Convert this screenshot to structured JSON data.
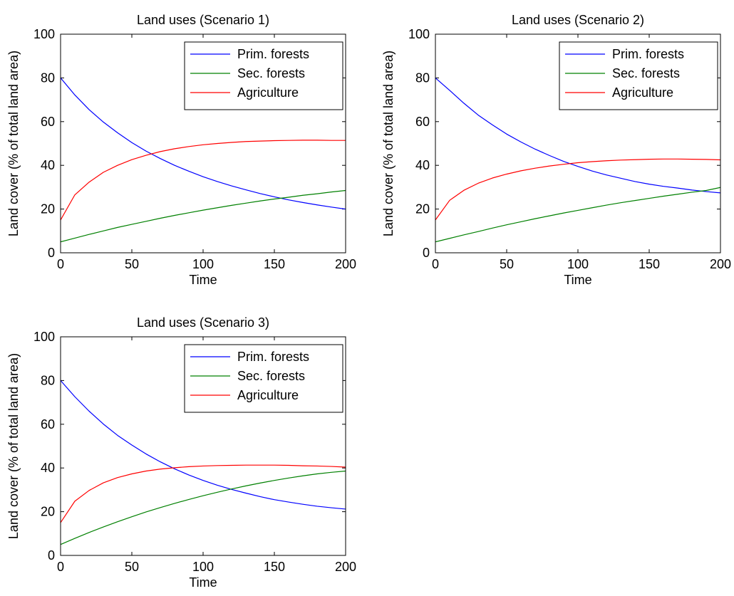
{
  "chart_data": [
    {
      "type": "line",
      "title": "Land uses (Scenario 1)",
      "xlabel": "Time",
      "ylabel": "Land cover (% of total land area)",
      "xlim": [
        0,
        200
      ],
      "ylim": [
        0,
        100
      ],
      "xticks": [
        0,
        50,
        100,
        150,
        200
      ],
      "yticks": [
        0,
        20,
        40,
        60,
        80,
        100
      ],
      "grid": false,
      "legend_position": "top-right",
      "x": [
        0,
        10,
        20,
        30,
        40,
        50,
        60,
        70,
        80,
        90,
        100,
        110,
        120,
        130,
        140,
        150,
        160,
        170,
        180,
        190,
        200
      ],
      "series": [
        {
          "name": "Prim. forests",
          "color": "#0000ff",
          "values": [
            80,
            72.2,
            65.5,
            59.8,
            54.9,
            50.4,
            46.5,
            43.1,
            40.0,
            37.3,
            34.8,
            32.6,
            30.6,
            28.8,
            27.1,
            25.6,
            24.2,
            23.0,
            21.9,
            20.9,
            20.0
          ]
        },
        {
          "name": "Sec. forests",
          "color": "#008000",
          "values": [
            5,
            6.7,
            8.4,
            10.0,
            11.6,
            13.0,
            14.4,
            15.8,
            17.1,
            18.3,
            19.5,
            20.6,
            21.7,
            22.7,
            23.7,
            24.6,
            25.4,
            26.3,
            27.0,
            27.8,
            28.5
          ]
        },
        {
          "name": "Agriculture",
          "color": "#ff0000",
          "values": [
            15,
            26.5,
            32.3,
            36.8,
            40.0,
            42.6,
            44.6,
            46.3,
            47.6,
            48.6,
            49.4,
            50.0,
            50.5,
            50.9,
            51.1,
            51.3,
            51.4,
            51.5,
            51.5,
            51.4,
            51.4
          ]
        }
      ]
    },
    {
      "type": "line",
      "title": "Land uses (Scenario 2)",
      "xlabel": "Time",
      "ylabel": "Land cover (% of total land area)",
      "xlim": [
        0,
        200
      ],
      "ylim": [
        0,
        100
      ],
      "xticks": [
        0,
        50,
        100,
        150,
        200
      ],
      "yticks": [
        0,
        20,
        40,
        60,
        80,
        100
      ],
      "grid": false,
      "legend_position": "top-right",
      "x": [
        0,
        10,
        20,
        30,
        40,
        50,
        60,
        70,
        80,
        90,
        100,
        110,
        120,
        130,
        140,
        150,
        160,
        170,
        180,
        190,
        200
      ],
      "series": [
        {
          "name": "Prim. forests",
          "color": "#0000ff",
          "values": [
            80,
            74.3,
            68.4,
            63.0,
            58.5,
            54.3,
            50.7,
            47.4,
            44.5,
            41.8,
            39.5,
            37.4,
            35.6,
            34.1,
            32.6,
            31.4,
            30.4,
            29.6,
            28.7,
            28.0,
            27.4
          ]
        },
        {
          "name": "Sec. forests",
          "color": "#008000",
          "values": [
            5,
            6.6,
            8.2,
            9.7,
            11.3,
            12.8,
            14.2,
            15.6,
            16.9,
            18.2,
            19.4,
            20.6,
            21.8,
            22.9,
            23.9,
            24.9,
            25.9,
            26.8,
            27.7,
            28.5,
            29.9
          ]
        },
        {
          "name": "Agriculture",
          "color": "#ff0000",
          "values": [
            15,
            24.0,
            28.6,
            31.8,
            34.2,
            36.0,
            37.5,
            38.7,
            39.7,
            40.5,
            41.2,
            41.7,
            42.1,
            42.4,
            42.6,
            42.8,
            42.9,
            42.9,
            42.8,
            42.7,
            42.5
          ]
        }
      ]
    },
    {
      "type": "line",
      "title": "Land uses (Scenario 3)",
      "xlabel": "Time",
      "ylabel": "Land cover (% of total land area)",
      "xlim": [
        0,
        200
      ],
      "ylim": [
        0,
        100
      ],
      "xticks": [
        0,
        50,
        100,
        150,
        200
      ],
      "yticks": [
        0,
        20,
        40,
        60,
        80,
        100
      ],
      "grid": false,
      "legend_position": "top-right",
      "x": [
        0,
        10,
        20,
        30,
        40,
        50,
        60,
        70,
        80,
        90,
        100,
        110,
        120,
        130,
        140,
        150,
        160,
        170,
        180,
        190,
        200
      ],
      "series": [
        {
          "name": "Prim. forests",
          "color": "#0000ff",
          "values": [
            80,
            72.6,
            66.0,
            60.1,
            54.9,
            50.5,
            46.4,
            42.8,
            39.6,
            36.8,
            34.3,
            32.1,
            30.2,
            28.5,
            26.9,
            25.5,
            24.4,
            23.4,
            22.5,
            21.8,
            21.2
          ]
        },
        {
          "name": "Sec. forests",
          "color": "#008000",
          "values": [
            5,
            7.8,
            10.5,
            13.0,
            15.4,
            17.7,
            19.9,
            21.9,
            23.8,
            25.6,
            27.3,
            28.9,
            30.4,
            31.8,
            33.1,
            34.3,
            35.4,
            36.4,
            37.3,
            38.0,
            38.6
          ]
        },
        {
          "name": "Agriculture",
          "color": "#ff0000",
          "values": [
            15,
            24.8,
            29.7,
            33.2,
            35.6,
            37.3,
            38.6,
            39.5,
            40.1,
            40.6,
            40.9,
            41.1,
            41.2,
            41.3,
            41.3,
            41.3,
            41.2,
            41.0,
            40.9,
            40.7,
            40.4
          ]
        }
      ]
    }
  ]
}
